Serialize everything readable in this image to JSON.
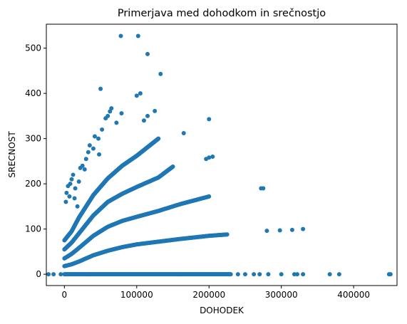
{
  "chart_data": {
    "type": "scatter",
    "title": "Primerjava med dohodkom in srečnostjo",
    "xlabel": "DOHODEK",
    "ylabel": "SRECNOST",
    "xlim": [
      -25000,
      460000
    ],
    "ylim": [
      -25,
      553
    ],
    "xticks": [
      0,
      100000,
      200000,
      300000,
      400000
    ],
    "xtick_labels": [
      "0",
      "100000",
      "200000",
      "300000",
      "400000"
    ],
    "yticks": [
      0,
      100,
      200,
      300,
      400,
      500
    ],
    "ytick_labels": [
      "0",
      "100",
      "200",
      "300",
      "400",
      "500"
    ],
    "grid": false,
    "color": "#1f77b4",
    "bands": [
      {
        "x": [
          0,
          20000,
          40000,
          60000,
          80000,
          100000,
          130000,
          160000,
          200000,
          230000
        ],
        "y": [
          0,
          0,
          0,
          0,
          0,
          0,
          0,
          0,
          0,
          0
        ]
      },
      {
        "x": [
          0,
          10000,
          20000,
          40000,
          60000,
          80000,
          100000,
          130000,
          160000,
          200000,
          225000
        ],
        "y": [
          18,
          22,
          28,
          42,
          52,
          60,
          66,
          72,
          78,
          85,
          88
        ]
      },
      {
        "x": [
          0,
          10000,
          20000,
          40000,
          60000,
          80000,
          100000,
          130000,
          160000,
          200000
        ],
        "y": [
          35,
          45,
          58,
          85,
          105,
          118,
          127,
          140,
          155,
          172
        ]
      },
      {
        "x": [
          0,
          10000,
          20000,
          40000,
          60000,
          80000,
          100000,
          130000,
          150000
        ],
        "y": [
          55,
          70,
          90,
          130,
          160,
          178,
          193,
          214,
          238
        ]
      },
      {
        "x": [
          0,
          10000,
          20000,
          40000,
          60000,
          80000,
          100000,
          130000
        ],
        "y": [
          75,
          95,
          125,
          175,
          212,
          240,
          262,
          300
        ]
      }
    ],
    "points": [
      {
        "x": -22000,
        "y": 0
      },
      {
        "x": -15000,
        "y": 0
      },
      {
        "x": -5000,
        "y": 0
      },
      {
        "x": 240000,
        "y": 0
      },
      {
        "x": 250000,
        "y": 0
      },
      {
        "x": 262000,
        "y": 0
      },
      {
        "x": 270000,
        "y": 0
      },
      {
        "x": 282000,
        "y": 0
      },
      {
        "x": 300000,
        "y": 0
      },
      {
        "x": 318000,
        "y": 0
      },
      {
        "x": 322000,
        "y": 0
      },
      {
        "x": 330000,
        "y": 0
      },
      {
        "x": 367000,
        "y": 0
      },
      {
        "x": 380000,
        "y": 0
      },
      {
        "x": 449000,
        "y": 0
      },
      {
        "x": 451000,
        "y": 0
      },
      {
        "x": 272000,
        "y": 190
      },
      {
        "x": 275000,
        "y": 190
      },
      {
        "x": 280000,
        "y": 96
      },
      {
        "x": 298000,
        "y": 97
      },
      {
        "x": 315000,
        "y": 98
      },
      {
        "x": 330000,
        "y": 100
      },
      {
        "x": 205000,
        "y": 260
      },
      {
        "x": 200000,
        "y": 258
      },
      {
        "x": 196000,
        "y": 255
      },
      {
        "x": 200000,
        "y": 343
      },
      {
        "x": 165000,
        "y": 312
      },
      {
        "x": 50000,
        "y": 410
      },
      {
        "x": 78000,
        "y": 527
      },
      {
        "x": 102000,
        "y": 527
      },
      {
        "x": 115000,
        "y": 487
      },
      {
        "x": 133000,
        "y": 443
      },
      {
        "x": 105000,
        "y": 400
      },
      {
        "x": 100000,
        "y": 395
      },
      {
        "x": 65000,
        "y": 367
      },
      {
        "x": 63000,
        "y": 360
      },
      {
        "x": 79000,
        "y": 356
      },
      {
        "x": 60000,
        "y": 350
      },
      {
        "x": 57000,
        "y": 345
      },
      {
        "x": 72000,
        "y": 335
      },
      {
        "x": 125000,
        "y": 361
      },
      {
        "x": 115000,
        "y": 350
      },
      {
        "x": 110000,
        "y": 340
      },
      {
        "x": 52000,
        "y": 320
      },
      {
        "x": 47000,
        "y": 300
      },
      {
        "x": 42000,
        "y": 305
      },
      {
        "x": 35000,
        "y": 285
      },
      {
        "x": 40000,
        "y": 278
      },
      {
        "x": 33000,
        "y": 270
      },
      {
        "x": 48000,
        "y": 265
      },
      {
        "x": 30000,
        "y": 255
      },
      {
        "x": 25000,
        "y": 240
      },
      {
        "x": 22000,
        "y": 235
      },
      {
        "x": 12000,
        "y": 220
      },
      {
        "x": 28000,
        "y": 232
      },
      {
        "x": 10000,
        "y": 210
      },
      {
        "x": 8000,
        "y": 200
      },
      {
        "x": 5000,
        "y": 195
      },
      {
        "x": 15000,
        "y": 190
      },
      {
        "x": 3000,
        "y": 180
      },
      {
        "x": 7000,
        "y": 172
      },
      {
        "x": 2000,
        "y": 160
      },
      {
        "x": 14000,
        "y": 168
      },
      {
        "x": 20000,
        "y": 205
      },
      {
        "x": 18000,
        "y": 150
      }
    ]
  }
}
